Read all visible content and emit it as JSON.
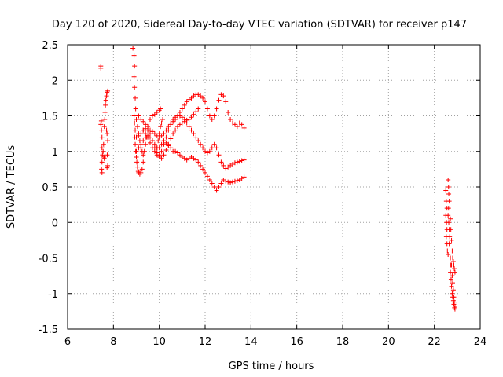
{
  "chart_data": {
    "type": "scatter",
    "title": "Day 120 of 2020, Sidereal Day-to-day VTEC variation (SDTVAR) for receiver p147",
    "xlabel": "GPS time / hours",
    "ylabel": "SDTVAR / TECUs",
    "xlim": [
      6,
      24
    ],
    "ylim": [
      -1.5,
      2.5
    ],
    "xticks": [
      "6",
      "8",
      "10",
      "12",
      "14",
      "16",
      "18",
      "20",
      "22",
      "24"
    ],
    "yticks": [
      "-1.5",
      "-1",
      "-0.5",
      "0",
      "0.5",
      "1",
      "1.5",
      "2",
      "2.5"
    ],
    "grid": true,
    "marker": "+",
    "series_color": "#ff0000",
    "series": [
      {
        "name": "p147 SDTVAR",
        "points": [
          [
            7.45,
            2.2
          ],
          [
            7.45,
            2.17
          ],
          [
            7.45,
            1.38
          ],
          [
            7.47,
            1.43
          ],
          [
            7.48,
            1.3
          ],
          [
            7.5,
            1.2
          ],
          [
            7.5,
            1.05
          ],
          [
            7.52,
            0.95
          ],
          [
            7.5,
            0.85
          ],
          [
            7.48,
            0.75
          ],
          [
            7.5,
            0.7
          ],
          [
            7.55,
            1.0
          ],
          [
            7.57,
            1.1
          ],
          [
            7.58,
            0.92
          ],
          [
            7.6,
            0.9
          ],
          [
            7.6,
            1.35
          ],
          [
            7.62,
            1.45
          ],
          [
            7.63,
            1.55
          ],
          [
            7.65,
            1.65
          ],
          [
            7.67,
            1.72
          ],
          [
            7.7,
            1.78
          ],
          [
            7.72,
            1.83
          ],
          [
            7.75,
            1.85
          ],
          [
            7.7,
            1.3
          ],
          [
            7.72,
            1.25
          ],
          [
            7.75,
            1.15
          ],
          [
            7.73,
            0.95
          ],
          [
            7.75,
            0.8
          ],
          [
            7.72,
            0.77
          ],
          [
            8.85,
            2.45
          ],
          [
            8.9,
            2.35
          ],
          [
            8.92,
            2.2
          ],
          [
            8.9,
            2.05
          ],
          [
            8.92,
            1.9
          ],
          [
            8.95,
            1.75
          ],
          [
            8.97,
            1.6
          ],
          [
            8.9,
            1.5
          ],
          [
            8.92,
            1.4
          ],
          [
            8.95,
            1.3
          ],
          [
            8.93,
            1.2
          ],
          [
            8.95,
            1.1
          ],
          [
            8.97,
            1.0
          ],
          [
            9.0,
            0.92
          ],
          [
            9.02,
            0.85
          ],
          [
            9.05,
            0.78
          ],
          [
            9.08,
            0.72
          ],
          [
            9.1,
            0.7
          ],
          [
            9.15,
            0.68
          ],
          [
            9.2,
            0.7
          ],
          [
            9.25,
            0.75
          ],
          [
            9.3,
            0.85
          ],
          [
            9.0,
            1.45
          ],
          [
            9.05,
            1.35
          ],
          [
            9.1,
            1.25
          ],
          [
            9.15,
            1.15
          ],
          [
            9.2,
            1.05
          ],
          [
            9.25,
            1.0
          ],
          [
            9.3,
            0.95
          ],
          [
            9.35,
            1.0
          ],
          [
            9.4,
            1.1
          ],
          [
            9.45,
            1.2
          ],
          [
            9.5,
            1.3
          ],
          [
            9.55,
            1.4
          ],
          [
            9.6,
            1.45
          ],
          [
            9.7,
            1.5
          ],
          [
            9.8,
            1.52
          ],
          [
            9.9,
            1.55
          ],
          [
            10.0,
            1.58
          ],
          [
            10.05,
            1.6
          ],
          [
            9.0,
            1.2
          ],
          [
            9.1,
            1.22
          ],
          [
            9.2,
            1.25
          ],
          [
            9.3,
            1.3
          ],
          [
            9.4,
            1.32
          ],
          [
            9.5,
            1.3
          ],
          [
            9.6,
            1.25
          ],
          [
            9.7,
            1.15
          ],
          [
            9.8,
            1.05
          ],
          [
            9.9,
            0.98
          ],
          [
            10.0,
            0.95
          ],
          [
            10.1,
            1.0
          ],
          [
            10.2,
            1.1
          ],
          [
            10.3,
            1.2
          ],
          [
            10.4,
            1.3
          ],
          [
            10.5,
            1.38
          ],
          [
            10.6,
            1.42
          ],
          [
            10.7,
            1.45
          ],
          [
            10.8,
            1.5
          ],
          [
            10.9,
            1.55
          ],
          [
            11.0,
            1.6
          ],
          [
            11.1,
            1.65
          ],
          [
            11.2,
            1.7
          ],
          [
            11.3,
            1.73
          ],
          [
            11.4,
            1.75
          ],
          [
            11.5,
            1.78
          ],
          [
            11.6,
            1.8
          ],
          [
            11.7,
            1.8
          ],
          [
            11.8,
            1.78
          ],
          [
            11.9,
            1.75
          ],
          [
            12.0,
            1.7
          ],
          [
            12.1,
            1.6
          ],
          [
            12.2,
            1.5
          ],
          [
            12.3,
            1.45
          ],
          [
            12.4,
            1.5
          ],
          [
            12.5,
            1.6
          ],
          [
            12.6,
            1.72
          ],
          [
            12.7,
            1.8
          ],
          [
            12.8,
            1.78
          ],
          [
            12.9,
            1.7
          ],
          [
            13.0,
            1.55
          ],
          [
            13.1,
            1.45
          ],
          [
            13.2,
            1.4
          ],
          [
            13.3,
            1.38
          ],
          [
            13.4,
            1.35
          ],
          [
            13.5,
            1.4
          ],
          [
            13.6,
            1.38
          ],
          [
            13.7,
            1.33
          ],
          [
            9.1,
            1.5
          ],
          [
            9.2,
            1.45
          ],
          [
            9.3,
            1.42
          ],
          [
            9.4,
            1.38
          ],
          [
            9.5,
            1.35
          ],
          [
            9.6,
            1.3
          ],
          [
            9.7,
            1.28
          ],
          [
            9.8,
            1.25
          ],
          [
            9.9,
            1.22
          ],
          [
            10.0,
            1.2
          ],
          [
            10.1,
            1.22
          ],
          [
            10.2,
            1.25
          ],
          [
            10.3,
            1.3
          ],
          [
            10.4,
            1.35
          ],
          [
            10.5,
            1.4
          ],
          [
            10.6,
            1.45
          ],
          [
            10.7,
            1.48
          ],
          [
            10.8,
            1.5
          ],
          [
            10.9,
            1.5
          ],
          [
            11.0,
            1.48
          ],
          [
            11.1,
            1.45
          ],
          [
            11.2,
            1.4
          ],
          [
            11.3,
            1.35
          ],
          [
            11.4,
            1.3
          ],
          [
            11.5,
            1.25
          ],
          [
            11.6,
            1.2
          ],
          [
            11.7,
            1.15
          ],
          [
            11.8,
            1.1
          ],
          [
            11.9,
            1.05
          ],
          [
            12.0,
            1.0
          ],
          [
            12.1,
            0.98
          ],
          [
            12.2,
            1.0
          ],
          [
            12.3,
            1.05
          ],
          [
            12.4,
            1.1
          ],
          [
            12.5,
            1.05
          ],
          [
            12.6,
            0.95
          ],
          [
            12.7,
            0.85
          ],
          [
            12.8,
            0.8
          ],
          [
            12.9,
            0.76
          ],
          [
            13.0,
            0.78
          ],
          [
            13.1,
            0.8
          ],
          [
            13.2,
            0.82
          ],
          [
            13.3,
            0.84
          ],
          [
            13.4,
            0.85
          ],
          [
            13.5,
            0.86
          ],
          [
            13.6,
            0.87
          ],
          [
            13.7,
            0.88
          ],
          [
            9.0,
            1.0
          ],
          [
            9.1,
            1.05
          ],
          [
            9.2,
            1.1
          ],
          [
            9.3,
            1.15
          ],
          [
            9.4,
            1.2
          ],
          [
            9.5,
            1.22
          ],
          [
            9.6,
            1.2
          ],
          [
            9.7,
            1.15
          ],
          [
            9.8,
            1.1
          ],
          [
            9.9,
            1.05
          ],
          [
            10.0,
            1.05
          ],
          [
            10.1,
            1.1
          ],
          [
            10.2,
            1.15
          ],
          [
            10.3,
            1.12
          ],
          [
            10.4,
            1.08
          ],
          [
            10.5,
            1.05
          ],
          [
            10.6,
            1.0
          ],
          [
            10.7,
            1.0
          ],
          [
            10.8,
            0.98
          ],
          [
            10.9,
            0.95
          ],
          [
            11.0,
            0.92
          ],
          [
            11.1,
            0.9
          ],
          [
            11.2,
            0.88
          ],
          [
            11.3,
            0.9
          ],
          [
            11.4,
            0.92
          ],
          [
            11.5,
            0.9
          ],
          [
            11.6,
            0.88
          ],
          [
            11.7,
            0.85
          ],
          [
            11.8,
            0.8
          ],
          [
            11.9,
            0.75
          ],
          [
            12.0,
            0.7
          ],
          [
            12.1,
            0.65
          ],
          [
            12.2,
            0.6
          ],
          [
            12.3,
            0.55
          ],
          [
            12.4,
            0.5
          ],
          [
            12.5,
            0.45
          ],
          [
            12.6,
            0.5
          ],
          [
            12.7,
            0.55
          ],
          [
            12.8,
            0.6
          ],
          [
            12.9,
            0.58
          ],
          [
            13.0,
            0.57
          ],
          [
            13.1,
            0.56
          ],
          [
            13.2,
            0.57
          ],
          [
            13.3,
            0.58
          ],
          [
            13.4,
            0.59
          ],
          [
            13.5,
            0.6
          ],
          [
            13.6,
            0.62
          ],
          [
            13.7,
            0.64
          ],
          [
            9.3,
            1.3
          ],
          [
            9.4,
            1.25
          ],
          [
            9.5,
            1.2
          ],
          [
            9.6,
            1.12
          ],
          [
            9.7,
            1.05
          ],
          [
            9.8,
            1.0
          ],
          [
            9.9,
            0.95
          ],
          [
            10.0,
            0.92
          ],
          [
            10.1,
            0.9
          ],
          [
            10.2,
            0.95
          ],
          [
            10.3,
            1.02
          ],
          [
            10.4,
            1.1
          ],
          [
            10.5,
            1.18
          ],
          [
            10.6,
            1.25
          ],
          [
            10.7,
            1.3
          ],
          [
            10.8,
            1.35
          ],
          [
            10.9,
            1.38
          ],
          [
            11.0,
            1.4
          ],
          [
            11.1,
            1.42
          ],
          [
            11.2,
            1.44
          ],
          [
            11.3,
            1.45
          ],
          [
            11.4,
            1.48
          ],
          [
            11.5,
            1.52
          ],
          [
            11.6,
            1.56
          ],
          [
            11.7,
            1.6
          ],
          [
            9.9,
            1.05
          ],
          [
            9.95,
            1.15
          ],
          [
            10.0,
            1.25
          ],
          [
            10.05,
            1.35
          ],
          [
            10.1,
            1.4
          ],
          [
            10.15,
            1.45
          ],
          [
            22.5,
            0.45
          ],
          [
            22.52,
            0.3
          ],
          [
            22.55,
            0.2
          ],
          [
            22.5,
            0.1
          ],
          [
            22.53,
            0.0
          ],
          [
            22.55,
            -0.1
          ],
          [
            22.52,
            -0.2
          ],
          [
            22.55,
            -0.3
          ],
          [
            22.57,
            -0.4
          ],
          [
            22.6,
            -0.45
          ],
          [
            22.6,
            0.6
          ],
          [
            22.62,
            0.5
          ],
          [
            22.63,
            0.4
          ],
          [
            22.65,
            0.3
          ],
          [
            22.62,
            0.2
          ],
          [
            22.6,
            0.1
          ],
          [
            22.63,
            0.0
          ],
          [
            22.65,
            -0.1
          ],
          [
            22.67,
            -0.2
          ],
          [
            22.65,
            -0.3
          ],
          [
            22.68,
            -0.4
          ],
          [
            22.7,
            -0.5
          ],
          [
            22.72,
            -0.6
          ],
          [
            22.7,
            -0.7
          ],
          [
            22.73,
            -0.8
          ],
          [
            22.75,
            -0.9
          ],
          [
            22.78,
            -1.0
          ],
          [
            22.8,
            -1.05
          ],
          [
            22.83,
            -1.1
          ],
          [
            22.85,
            -1.15
          ],
          [
            22.88,
            -1.2
          ],
          [
            22.9,
            -1.22
          ],
          [
            22.7,
            0.05
          ],
          [
            22.72,
            -0.1
          ],
          [
            22.75,
            -0.25
          ],
          [
            22.78,
            -0.4
          ],
          [
            22.8,
            -0.5
          ],
          [
            22.83,
            -0.55
          ],
          [
            22.85,
            -0.6
          ],
          [
            22.87,
            -0.65
          ],
          [
            22.9,
            -0.7
          ],
          [
            22.75,
            -0.6
          ],
          [
            22.78,
            -0.75
          ],
          [
            22.8,
            -0.85
          ],
          [
            22.83,
            -0.95
          ],
          [
            22.85,
            -1.05
          ],
          [
            22.87,
            -1.12
          ],
          [
            22.9,
            -1.18
          ]
        ]
      }
    ]
  }
}
